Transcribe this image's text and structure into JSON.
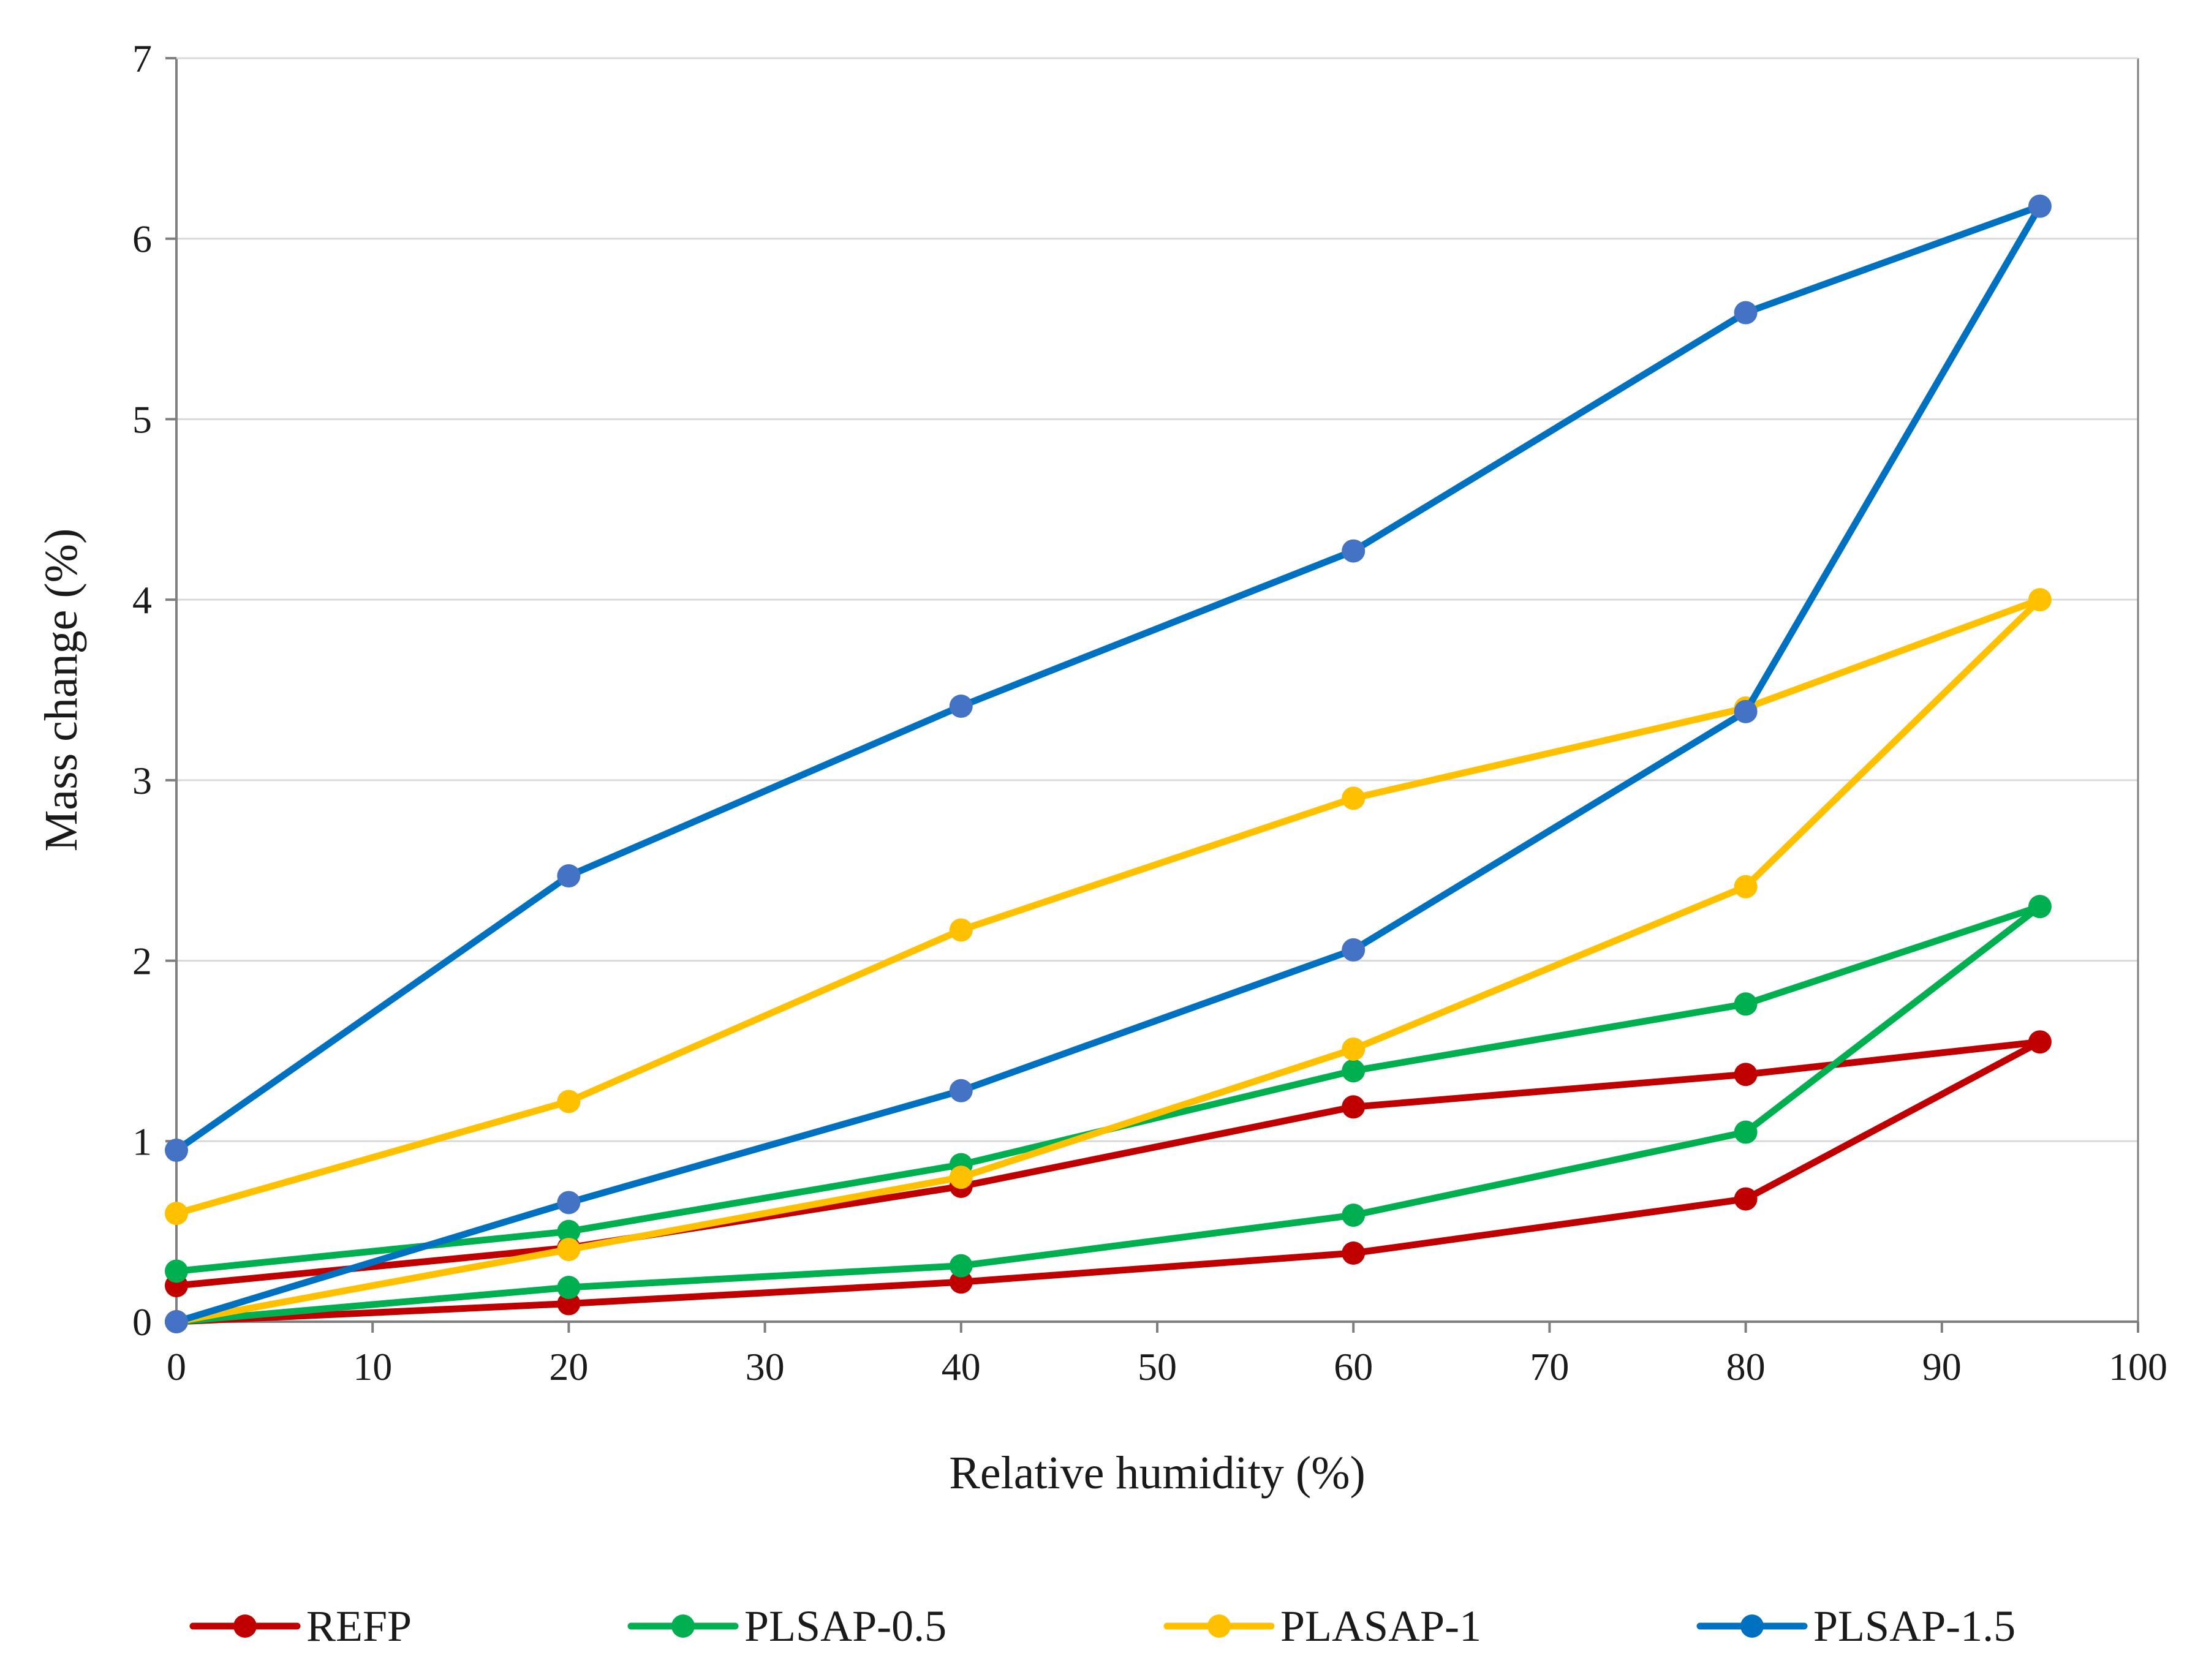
{
  "chart_data": {
    "type": "line",
    "title": "",
    "xlabel": "Relative humidity (%)",
    "ylabel": "Mass change (%)",
    "xlim": [
      0,
      100
    ],
    "ylim": [
      0,
      7
    ],
    "xticks": [
      0,
      10,
      20,
      30,
      40,
      50,
      60,
      70,
      80,
      90,
      100
    ],
    "yticks": [
      0,
      1,
      2,
      3,
      4,
      5,
      6,
      7
    ],
    "grid": "horizontal",
    "legend_position": "bottom",
    "series": [
      {
        "name": "REFP",
        "color": "#C00000",
        "x": [
          0,
          20,
          40,
          60,
          80,
          95,
          80,
          60,
          40,
          20,
          0
        ],
        "y": [
          0.0,
          0.1,
          0.22,
          0.38,
          0.68,
          1.55,
          1.37,
          1.19,
          0.75,
          0.41,
          0.2
        ]
      },
      {
        "name": "PLSAP-0.5",
        "color": "#00B050",
        "x": [
          0,
          20,
          40,
          60,
          80,
          95,
          80,
          60,
          40,
          20,
          0
        ],
        "y": [
          0.0,
          0.19,
          0.31,
          0.59,
          1.05,
          2.3,
          1.76,
          1.39,
          0.87,
          0.5,
          0.28
        ]
      },
      {
        "name": "PLASAP-1",
        "color": "#FFC000",
        "x": [
          0,
          20,
          40,
          60,
          80,
          95,
          80,
          60,
          40,
          20,
          0
        ],
        "y": [
          0.0,
          0.4,
          0.8,
          1.51,
          2.41,
          4.0,
          3.4,
          2.9,
          2.17,
          1.22,
          0.6
        ]
      },
      {
        "name": "PLSAP-1.5",
        "color": "#0070C0",
        "marker_color": "#4472C4",
        "x": [
          0,
          20,
          40,
          60,
          80,
          95,
          80,
          60,
          40,
          20,
          0
        ],
        "y": [
          0.0,
          0.66,
          1.28,
          2.06,
          3.38,
          6.18,
          5.59,
          4.27,
          3.41,
          2.47,
          0.95
        ]
      }
    ]
  }
}
